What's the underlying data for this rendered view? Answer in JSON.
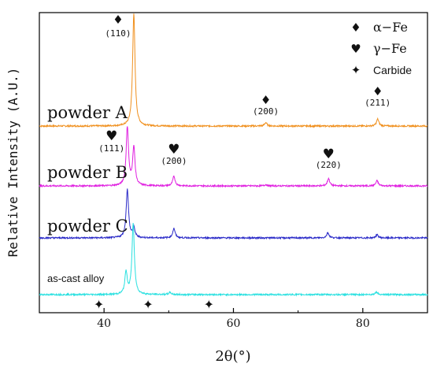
{
  "chart_data": {
    "type": "line",
    "title": "",
    "xlabel": "2θ(°)",
    "ylabel": "Relative Intensity (A.U.)",
    "xlim": [
      30,
      90
    ],
    "x_ticks": [
      40,
      60,
      80
    ],
    "y_ticks": "none",
    "grid": false,
    "series": [
      {
        "name": "powder A",
        "color": "#f0901e",
        "baseline": 0.0,
        "peaks": [
          [
            44.6,
            2.6
          ],
          [
            65.0,
            0.08
          ],
          [
            82.3,
            0.16
          ]
        ]
      },
      {
        "name": "powder B",
        "color": "#e020e0",
        "baseline": 0.0,
        "peaks": [
          [
            43.6,
            1.35
          ],
          [
            44.6,
            0.88
          ],
          [
            50.8,
            0.22
          ],
          [
            65.0,
            0.03
          ],
          [
            74.7,
            0.17
          ],
          [
            82.2,
            0.12
          ]
        ]
      },
      {
        "name": "powder C",
        "color": "#2a2ac8",
        "baseline": 0.0,
        "peaks": [
          [
            43.6,
            1.12
          ],
          [
            44.6,
            0.22
          ],
          [
            50.8,
            0.22
          ],
          [
            74.6,
            0.12
          ],
          [
            82.2,
            0.07
          ]
        ]
      },
      {
        "name": "as-cast alloy",
        "color": "#28e0e0",
        "baseline": 0.0,
        "peaks": [
          [
            43.4,
            0.5
          ],
          [
            44.5,
            1.6
          ],
          [
            50.2,
            0.05
          ],
          [
            82.1,
            0.06
          ]
        ]
      }
    ],
    "annotations": [
      {
        "symbol": "♦",
        "text": "(110)",
        "x": 44.6,
        "series": "powder A"
      },
      {
        "symbol": "♦",
        "text": "(200)",
        "x": 65.0,
        "series": "powder A"
      },
      {
        "symbol": "♦",
        "text": "(211)",
        "x": 82.3,
        "series": "powder A"
      },
      {
        "symbol": "♥",
        "text": "(111)",
        "x": 43.6,
        "series": "powder B"
      },
      {
        "symbol": "♥",
        "text": "(200)",
        "x": 50.8,
        "series": "powder B"
      },
      {
        "symbol": "♥",
        "text": "(220)",
        "x": 74.7,
        "series": "powder B"
      }
    ],
    "carbide_markers": {
      "symbol": "✦",
      "x": [
        39.2,
        46.8,
        56.2
      ]
    },
    "legend": {
      "placement": "top-right",
      "entries": [
        {
          "symbol": "♦",
          "label": "α−Fe"
        },
        {
          "symbol": "♥",
          "label": "γ−Fe"
        },
        {
          "symbol": "✦",
          "label": "Carbide"
        }
      ]
    }
  }
}
